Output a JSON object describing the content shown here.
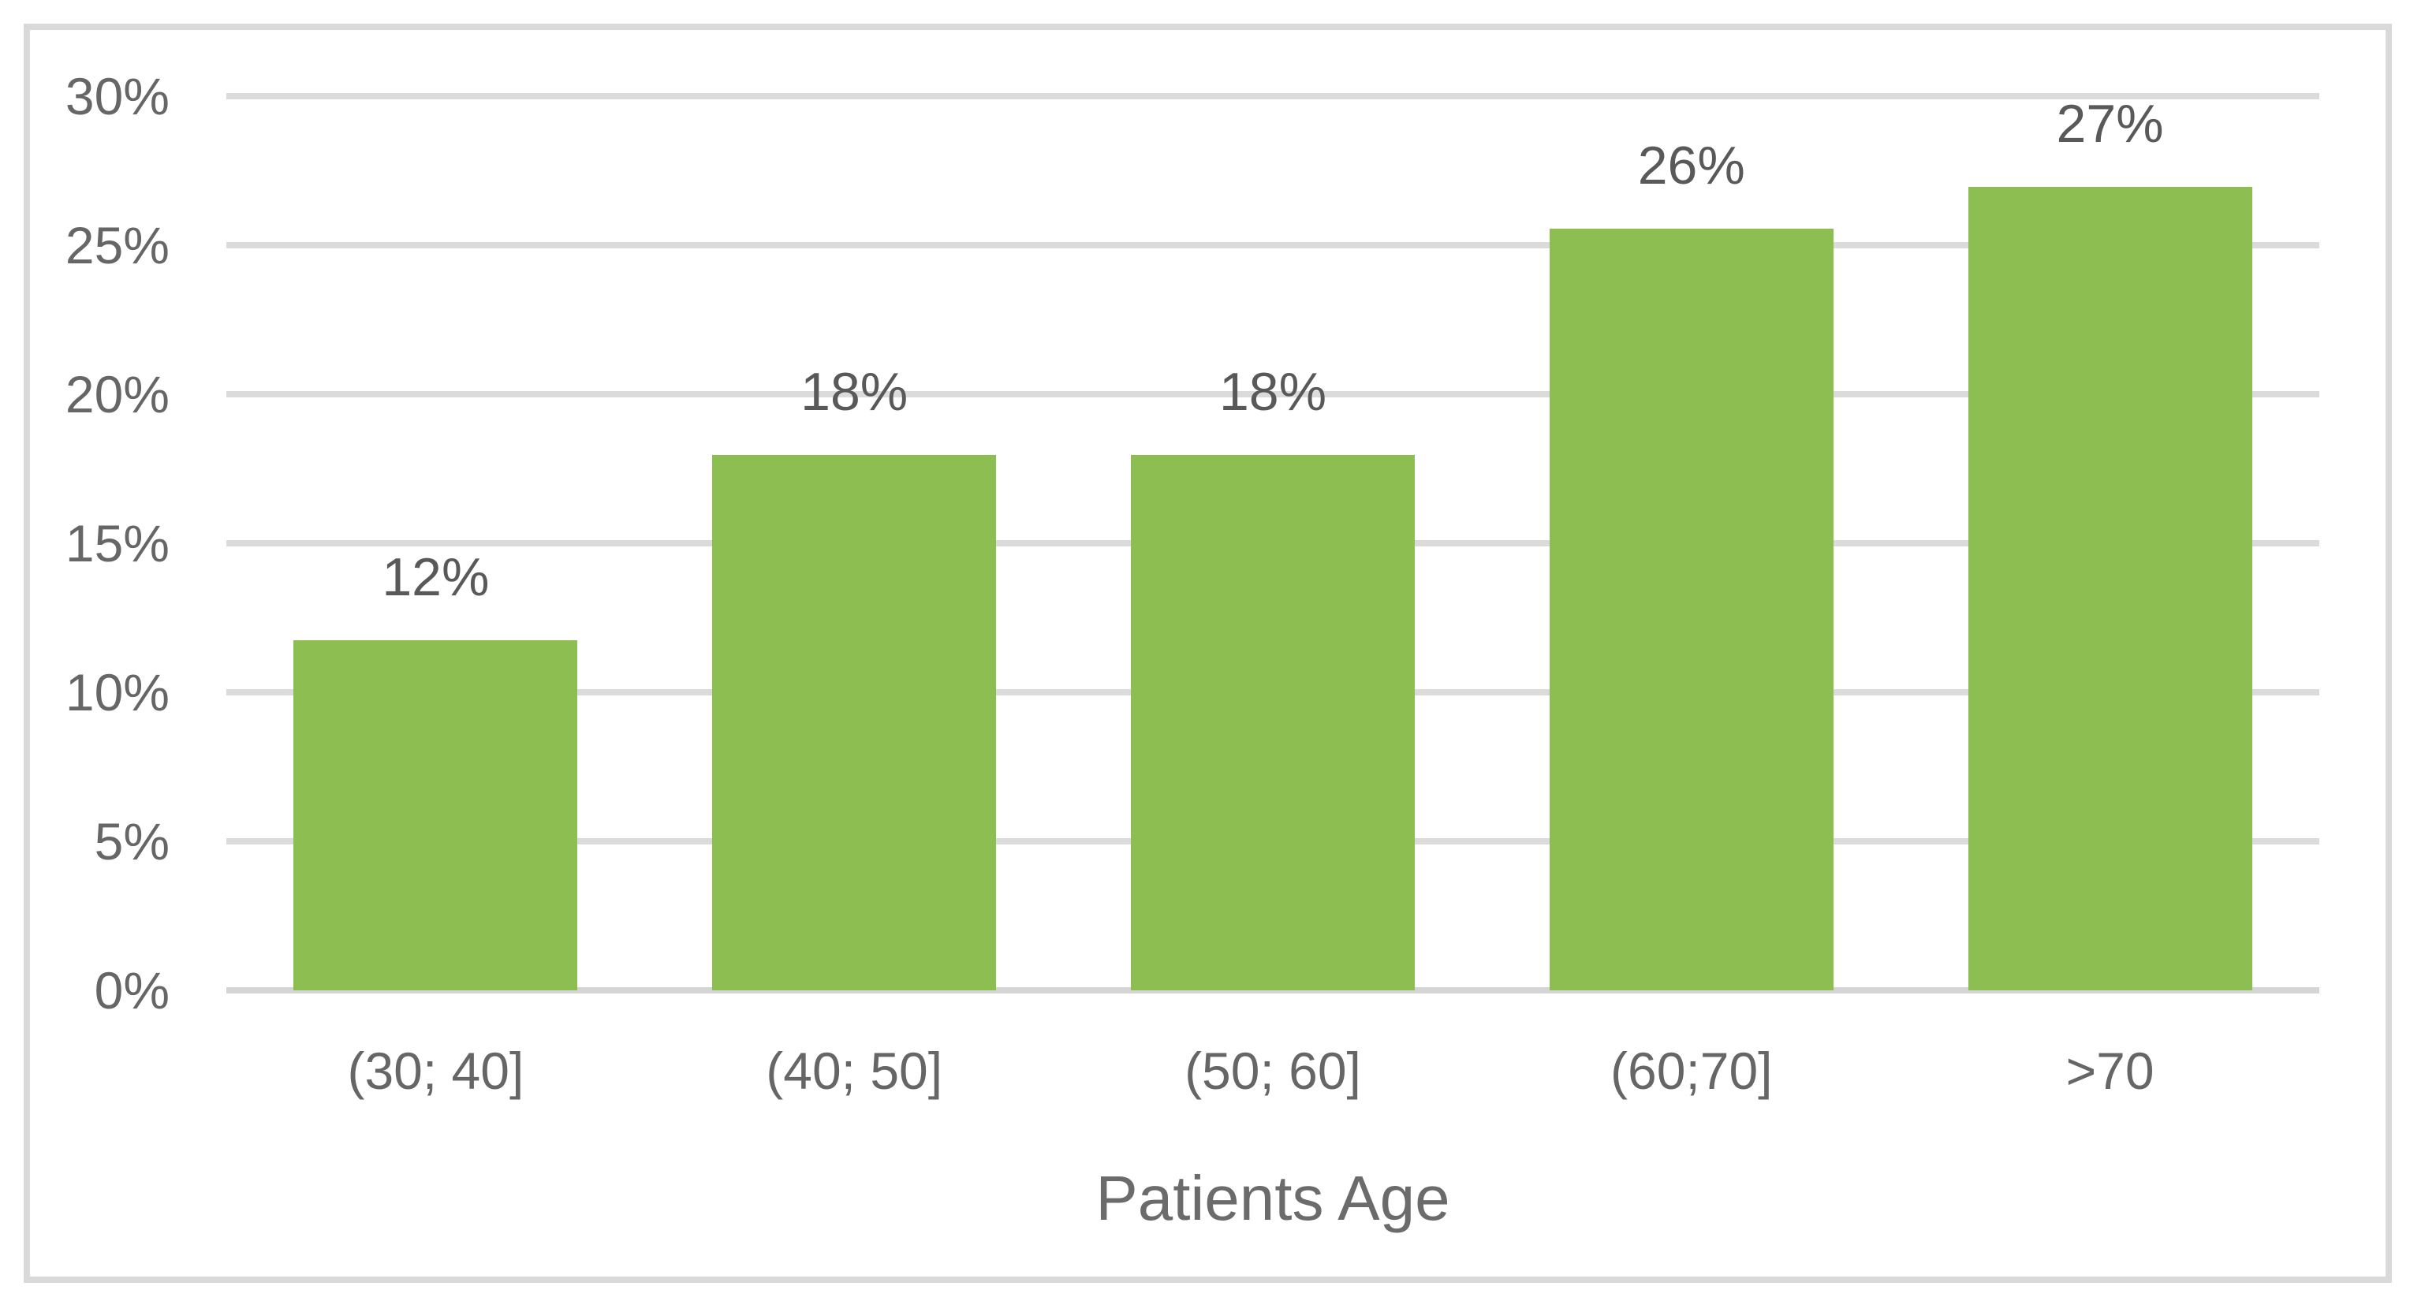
{
  "chart_data": {
    "type": "bar",
    "title": "",
    "xlabel": "Patients Age",
    "ylabel": "",
    "categories": [
      "(30; 40]",
      "(40; 50]",
      "(50; 60]",
      "(60;70]",
      ">70"
    ],
    "values": [
      12,
      18,
      18,
      26,
      27
    ],
    "data_labels": [
      "12%",
      "18%",
      "18%",
      "26%",
      "27%"
    ],
    "drawn_values": [
      11.75,
      17.95,
      17.95,
      25.55,
      26.95
    ],
    "series_count": 1,
    "ylim": [
      0,
      30
    ],
    "ytick_interval": 5,
    "ytick_labels": [
      "0%",
      "5%",
      "10%",
      "15%",
      "20%",
      "25%",
      "30%"
    ],
    "grid": "horizontal",
    "legend": "none"
  },
  "colors": {
    "bar": "#8cbe51",
    "label_text": "#595959",
    "tick_text": "#666666",
    "gridline": "#dbdbdb",
    "axis_line": "#d4d4d4",
    "frame_border": "#d9d9d9",
    "background": "#ffffff"
  }
}
